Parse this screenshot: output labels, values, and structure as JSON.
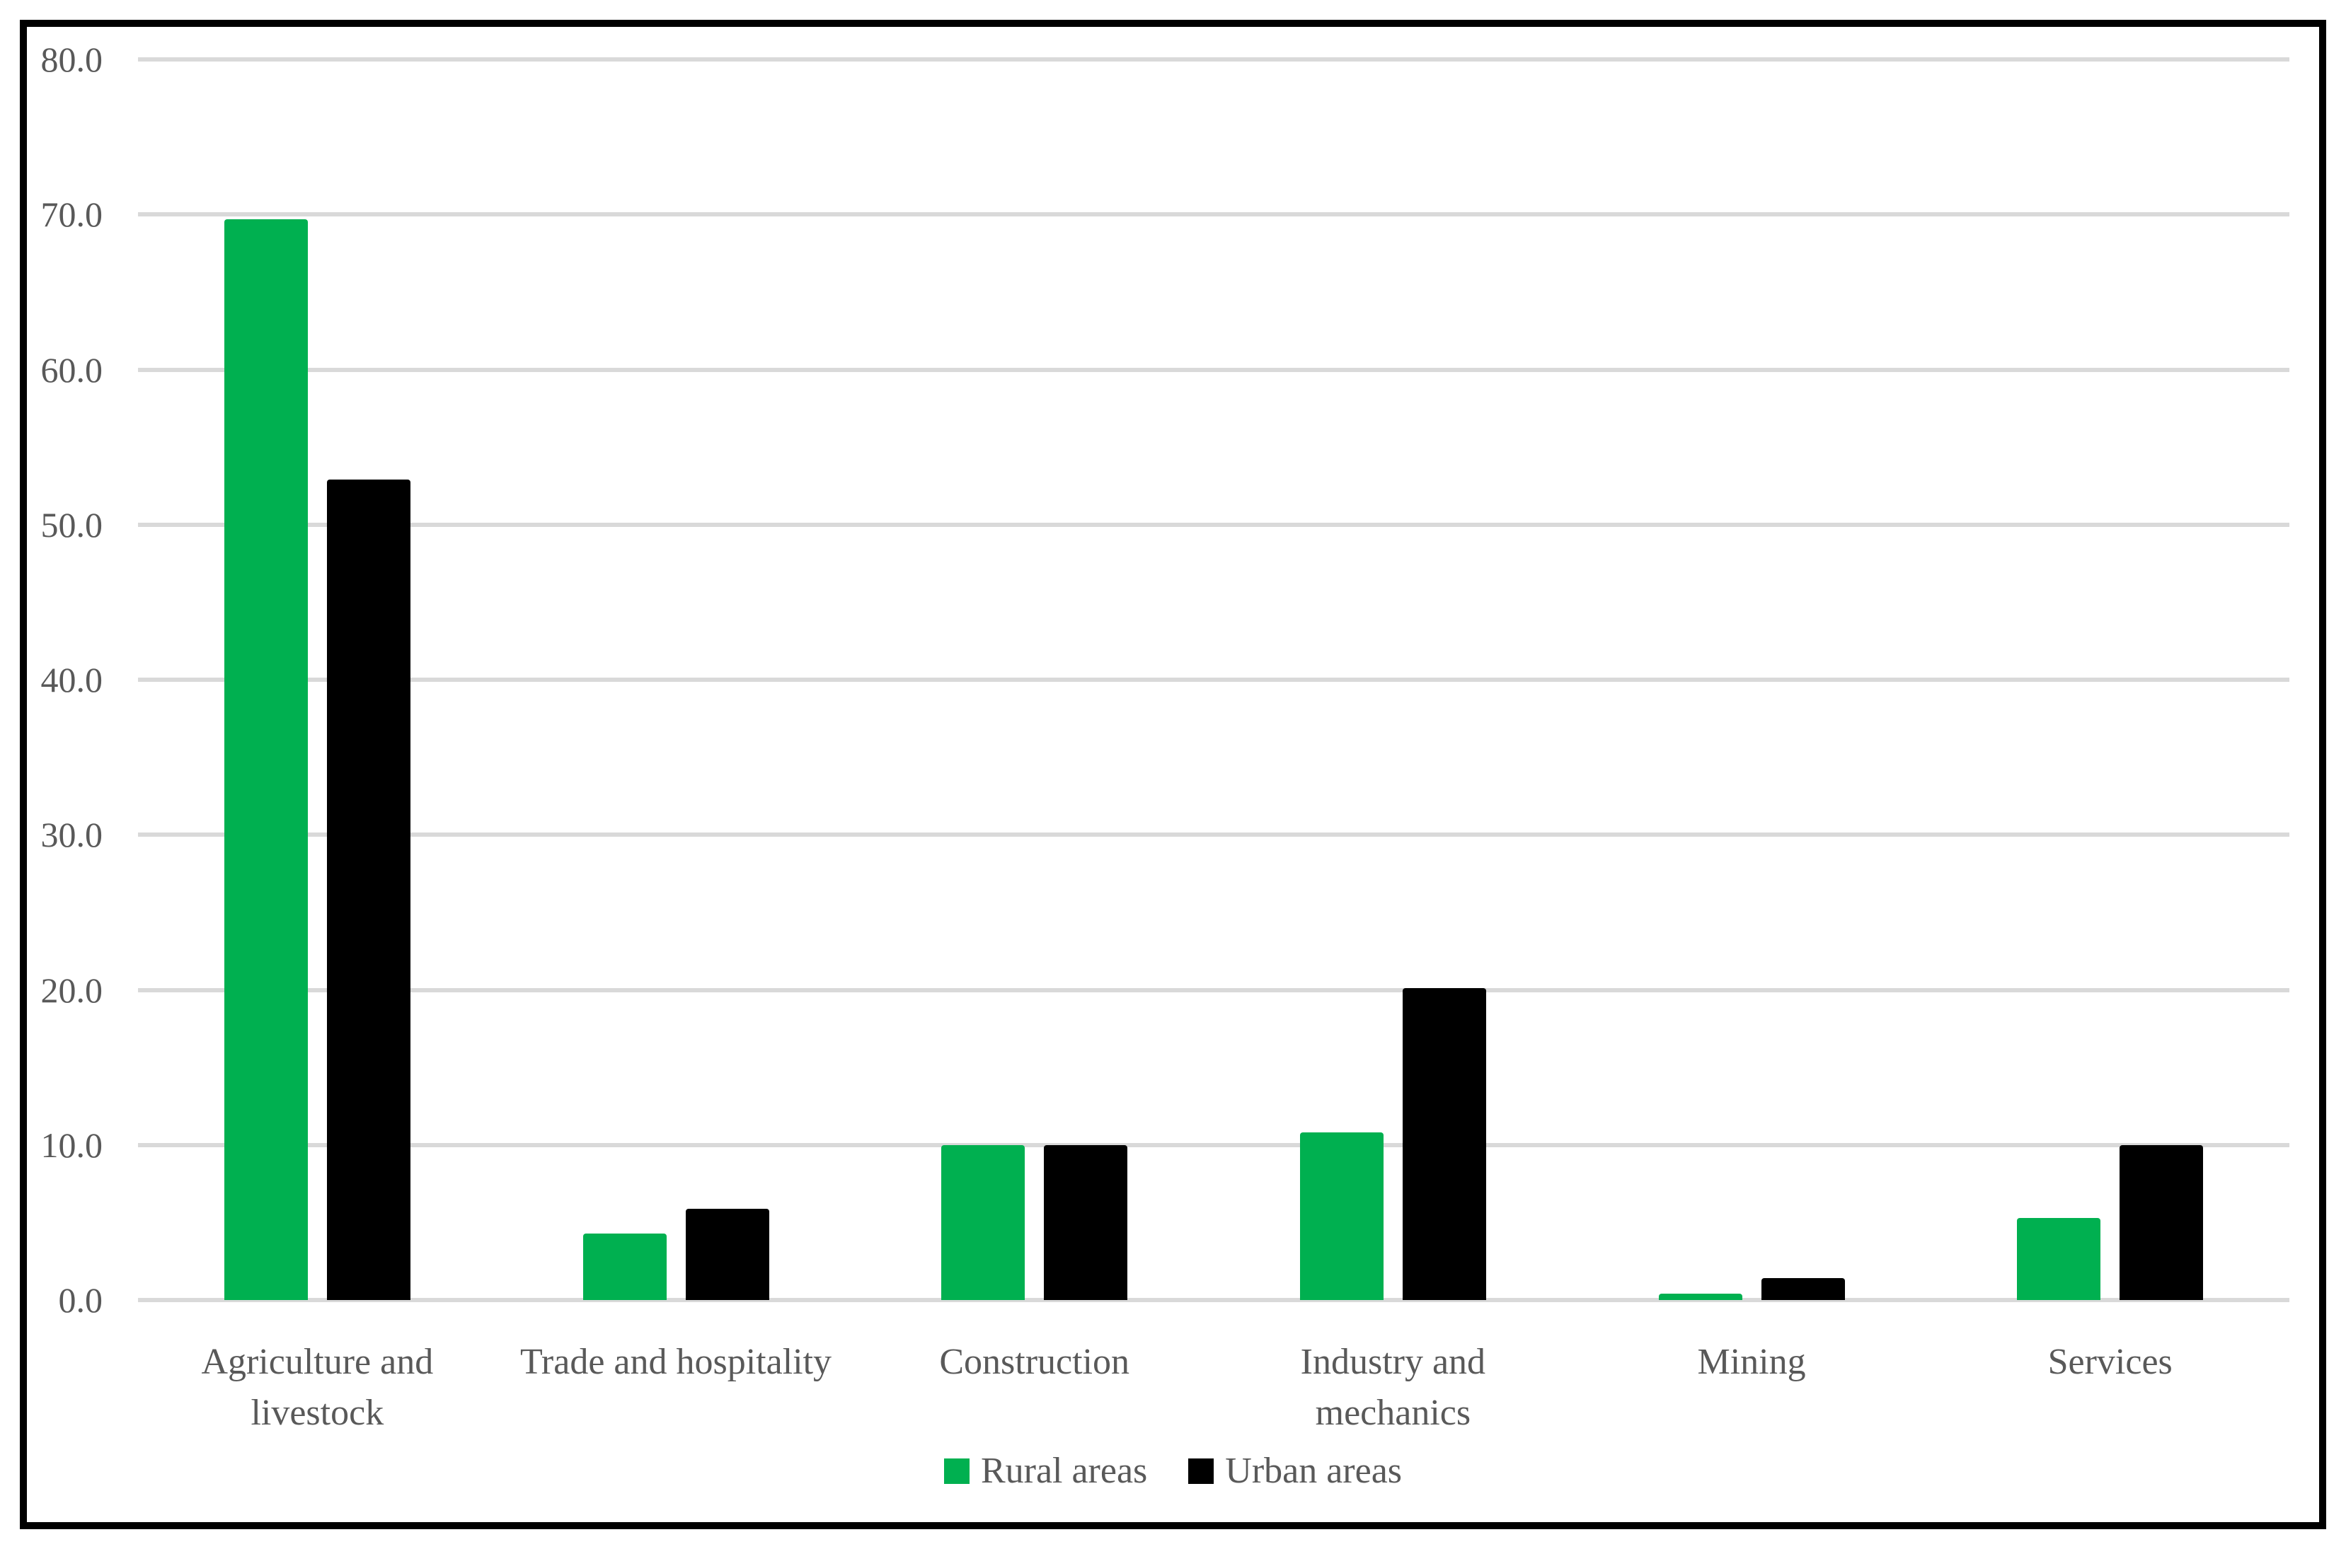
{
  "chart_data": {
    "type": "bar",
    "title": "",
    "xlabel": "",
    "ylabel": "",
    "categories": [
      "Agriculture and livestock",
      "Trade and hospitality",
      "Construction",
      "Industry and mechanics",
      "Mining",
      "Services"
    ],
    "category_display_lines": [
      [
        "Agriculture and",
        "livestock"
      ],
      [
        "Trade and hospitality"
      ],
      [
        "Construction"
      ],
      [
        "Industry and",
        "mechanics"
      ],
      [
        "Mining"
      ],
      [
        "Services"
      ]
    ],
    "series": [
      {
        "name": "Rural areas",
        "color": "#00B050",
        "values": [
          69.7,
          4.3,
          10.0,
          10.8,
          0.4,
          5.3
        ]
      },
      {
        "name": "Urban areas",
        "color": "#000000",
        "values": [
          52.9,
          5.9,
          10.0,
          20.1,
          1.4,
          10.0
        ]
      }
    ],
    "y_axis": {
      "min": 0,
      "max": 80,
      "tick_step": 10,
      "tick_labels": [
        "0.0",
        "10.0",
        "20.0",
        "30.0",
        "40.0",
        "50.0",
        "60.0",
        "70.0",
        "80.0"
      ]
    },
    "grid": true,
    "legend_position": "bottom"
  },
  "legend": {
    "items": [
      {
        "label": "Rural areas",
        "color": "#00B050"
      },
      {
        "label": "Urban areas",
        "color": "#000000"
      }
    ]
  },
  "colors": {
    "background": "#FFFFFF",
    "border": "#000000",
    "gridline": "#D9D9D9",
    "text": "#595959",
    "rural": "#00B050",
    "urban": "#000000"
  }
}
